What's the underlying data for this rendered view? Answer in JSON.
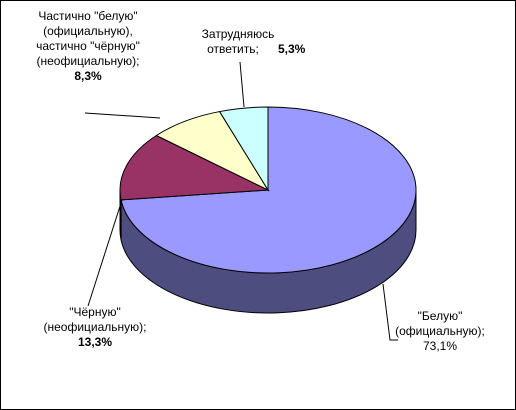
{
  "chart_data": {
    "type": "pie3d",
    "categories": [
      "\"Белую\"\n(официальную);",
      "\"Чёрную\"\n(неофициальную);",
      "Частично \"белую\"\n(официальную),\nчастично \"чёрную\"\n(неофициальную);",
      "Затрудняюсь\nответить;"
    ],
    "values": [
      73.1,
      13.3,
      8.3,
      5.3
    ],
    "value_labels": [
      "73,1%",
      "13,3%",
      "8,3%",
      "5,3%"
    ],
    "colors": [
      "#9999ff",
      "#993366",
      "#ffffcc",
      "#ccffff"
    ]
  }
}
